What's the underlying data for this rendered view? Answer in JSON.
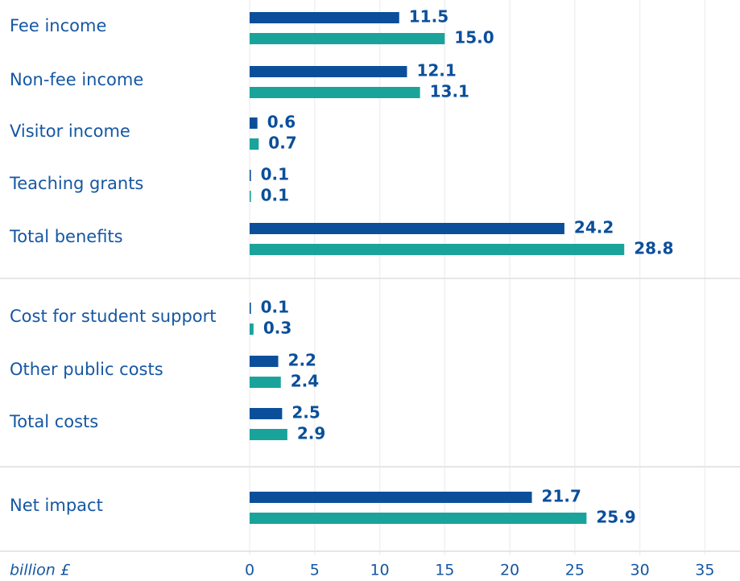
{
  "chart_data": {
    "type": "hbar",
    "categories": [
      "Fee income",
      "Non-fee income",
      "Visitor income",
      "Teaching grants",
      "Total benefits",
      "Cost for student support",
      "Other public costs",
      "Total costs",
      "Net impact"
    ],
    "series": [
      {
        "color": "#0b4f9b",
        "values": [
          11.5,
          12.1,
          0.6,
          0.1,
          24.2,
          0.1,
          2.2,
          2.5,
          21.7
        ],
        "value_labels": [
          "11.5",
          "12.1",
          "0.6",
          "0.1",
          "24.2",
          "0.1",
          "2.2",
          "2.5",
          "21.7"
        ]
      },
      {
        "color": "#1aa39a",
        "values": [
          15.0,
          13.1,
          0.7,
          0.1,
          28.8,
          0.3,
          2.4,
          2.9,
          25.9
        ],
        "value_labels": [
          "15.0",
          "13.1",
          "0.7",
          "0.1",
          "28.8",
          "0.3",
          "2.4",
          "2.9",
          "25.9"
        ]
      }
    ],
    "xlabel": "billion £",
    "xlim": [
      0,
      37.7
    ],
    "xticks": [
      0,
      5,
      10,
      15,
      20,
      25,
      30,
      35
    ],
    "grid": true
  }
}
